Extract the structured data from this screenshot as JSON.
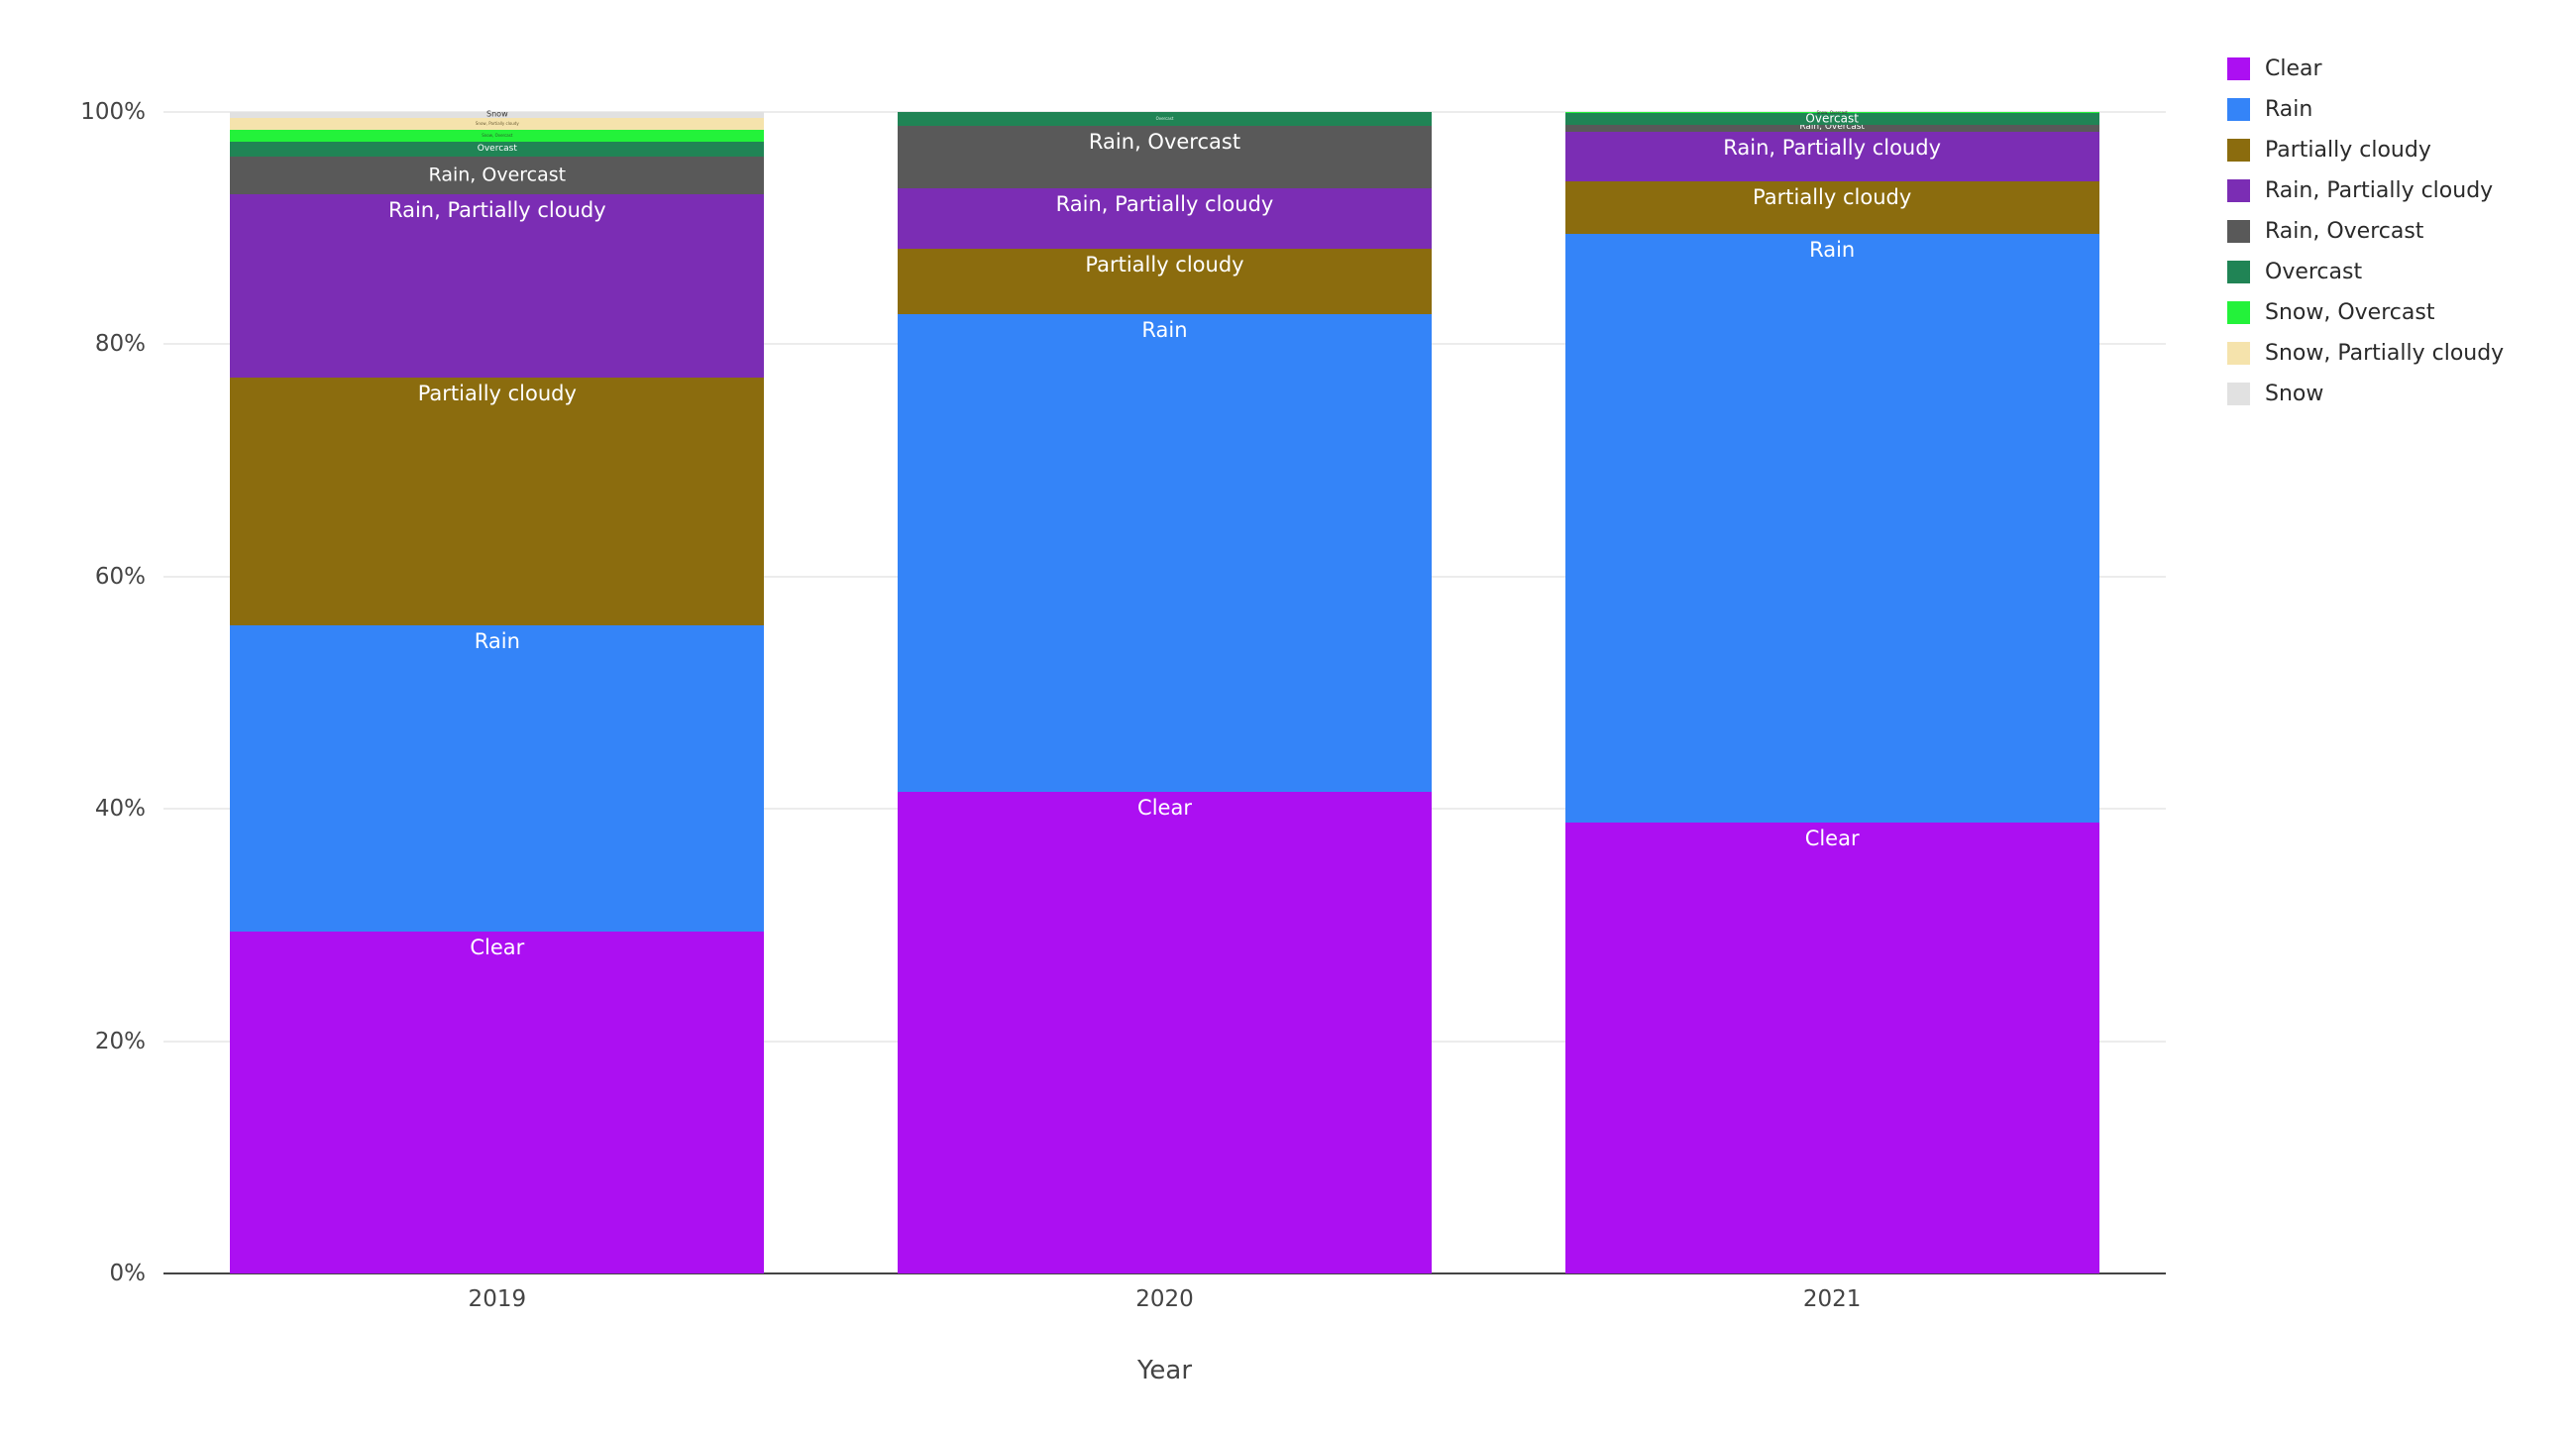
{
  "chart_data": {
    "type": "bar",
    "stacked": true,
    "normalized": "percent",
    "orientation": "vertical",
    "grid": true,
    "legend_position": "top-right",
    "xlabel": "Year",
    "ylabel": "",
    "ylim": [
      0,
      100
    ],
    "y_ticks": [
      "0%",
      "20%",
      "40%",
      "60%",
      "80%",
      "100%"
    ],
    "y_tick_values": [
      0,
      20,
      40,
      60,
      80,
      100
    ],
    "categories": [
      "2019",
      "2020",
      "2021"
    ],
    "legend": [
      {
        "label": "Clear",
        "color": "#AC0FF2"
      },
      {
        "label": "Rain",
        "color": "#3484F8"
      },
      {
        "label": "Partially cloudy",
        "color": "#8B6C0E"
      },
      {
        "label": "Rain, Partially cloudy",
        "color": "#7B2DB4"
      },
      {
        "label": "Rain, Overcast",
        "color": "#595959"
      },
      {
        "label": "Overcast",
        "color": "#208455"
      },
      {
        "label": "Snow, Overcast",
        "color": "#23F23A"
      },
      {
        "label": "Snow, Partially cloudy",
        "color": "#F5E3AC"
      },
      {
        "label": "Snow",
        "color": "#E1E1E1"
      }
    ],
    "series": [
      {
        "name": "Clear",
        "values": [
          29.4,
          41.5,
          38.8
        ]
      },
      {
        "name": "Rain",
        "values": [
          26.4,
          41.1,
          50.7
        ]
      },
      {
        "name": "Partially cloudy",
        "values": [
          21.3,
          5.6,
          4.5
        ]
      },
      {
        "name": "Rain, Partially cloudy",
        "values": [
          15.8,
          5.2,
          4.3
        ]
      },
      {
        "name": "Rain, Overcast",
        "values": [
          3.3,
          5.4,
          0.6
        ]
      },
      {
        "name": "Overcast",
        "values": [
          1.2,
          1.2,
          1.0
        ]
      },
      {
        "name": "Snow, Overcast",
        "values": [
          1.1,
          0,
          0.1
        ]
      },
      {
        "name": "Snow, Partially cloudy",
        "values": [
          1.0,
          0,
          0
        ]
      },
      {
        "name": "Snow",
        "values": [
          0.5,
          0,
          0
        ]
      }
    ],
    "bars": [
      {
        "category": "2019",
        "segments": [
          {
            "name": "Clear",
            "value": 29.4,
            "label_size": 21,
            "label_color": "#ffffff"
          },
          {
            "name": "Rain",
            "value": 26.4,
            "label_size": 21,
            "label_color": "#ffffff"
          },
          {
            "name": "Partially cloudy",
            "value": 21.3,
            "label_size": 21,
            "label_color": "#ffffff"
          },
          {
            "name": "Rain, Partially cloudy",
            "value": 15.8,
            "label_size": 21,
            "label_color": "#ffffff"
          },
          {
            "name": "Rain, Overcast",
            "value": 3.3,
            "label_size": 19,
            "label_color": "#ffffff"
          },
          {
            "name": "Overcast",
            "value": 1.2,
            "label_size": 9,
            "label_color": "#ffffff"
          },
          {
            "name": "Snow, Overcast",
            "value": 1.1,
            "label_size": 4,
            "label_color": "#2b5c2b"
          },
          {
            "name": "Snow, Partially cloudy",
            "value": 1.0,
            "label_size": 4,
            "label_color": "#6b5c35"
          },
          {
            "name": "Snow",
            "value": 0.5,
            "label_size": 8,
            "label_color": "#333333"
          }
        ]
      },
      {
        "category": "2020",
        "segments": [
          {
            "name": "Clear",
            "value": 41.5,
            "label_size": 21,
            "label_color": "#ffffff"
          },
          {
            "name": "Rain",
            "value": 41.1,
            "label_size": 21,
            "label_color": "#ffffff"
          },
          {
            "name": "Partially cloudy",
            "value": 5.6,
            "label_size": 21,
            "label_color": "#ffffff"
          },
          {
            "name": "Rain, Partially cloudy",
            "value": 5.2,
            "label_size": 21,
            "label_color": "#ffffff"
          },
          {
            "name": "Rain, Overcast",
            "value": 5.4,
            "label_size": 21,
            "label_color": "#ffffff"
          },
          {
            "name": "Overcast",
            "value": 1.2,
            "label_size": 4,
            "label_color": "#d9efe3"
          }
        ]
      },
      {
        "category": "2021",
        "segments": [
          {
            "name": "Clear",
            "value": 38.8,
            "label_size": 21,
            "label_color": "#ffffff"
          },
          {
            "name": "Rain",
            "value": 50.7,
            "label_size": 21,
            "label_color": "#ffffff"
          },
          {
            "name": "Partially cloudy",
            "value": 4.5,
            "label_size": 21,
            "label_color": "#ffffff"
          },
          {
            "name": "Rain, Partially cloudy",
            "value": 4.3,
            "label_size": 21,
            "label_color": "#ffffff"
          },
          {
            "name": "Rain, Overcast",
            "value": 0.6,
            "label_size": 9,
            "label_color": "#ffffff"
          },
          {
            "name": "Overcast",
            "value": 1.0,
            "label_size": 12,
            "label_color": "#ffffff"
          },
          {
            "name": "Snow, Overcast",
            "value": 0.1,
            "label_size": 4,
            "label_color": "#333333"
          }
        ]
      }
    ]
  }
}
